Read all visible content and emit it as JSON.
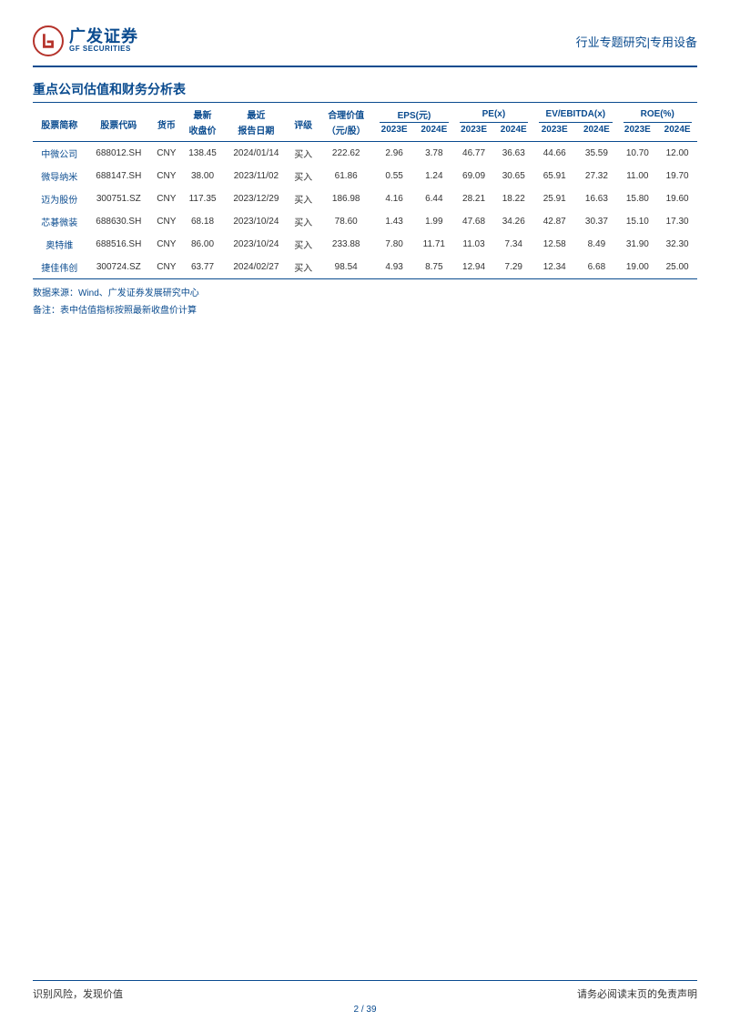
{
  "header": {
    "logo_cn": "广发证券",
    "logo_en": "GF SECURITIES",
    "category": "行业专题研究",
    "sep": "|",
    "subcategory": "专用设备"
  },
  "table": {
    "title": "重点公司估值和财务分析表",
    "head": {
      "name": "股票简称",
      "code": "股票代码",
      "currency": "货币",
      "price_top": "最新",
      "price_bot": "收盘价",
      "date_top": "最近",
      "date_bot": "报告日期",
      "rating": "评级",
      "fair_top": "合理价值",
      "fair_bot": "（元/股）",
      "eps": "EPS(元)",
      "pe": "PE(x)",
      "ev": "EV/EBITDA(x)",
      "roe": "ROE(%)",
      "y23": "2023E",
      "y24": "2024E"
    },
    "rows": [
      {
        "name": "中微公司",
        "code": "688012.SH",
        "cur": "CNY",
        "price": "138.45",
        "date": "2024/01/14",
        "rating": "买入",
        "fair": "222.62",
        "eps23": "2.96",
        "eps24": "3.78",
        "pe23": "46.77",
        "pe24": "36.63",
        "ev23": "44.66",
        "ev24": "35.59",
        "roe23": "10.70",
        "roe24": "12.00"
      },
      {
        "name": "微导纳米",
        "code": "688147.SH",
        "cur": "CNY",
        "price": "38.00",
        "date": "2023/11/02",
        "rating": "买入",
        "fair": "61.86",
        "eps23": "0.55",
        "eps24": "1.24",
        "pe23": "69.09",
        "pe24": "30.65",
        "ev23": "65.91",
        "ev24": "27.32",
        "roe23": "11.00",
        "roe24": "19.70"
      },
      {
        "name": "迈为股份",
        "code": "300751.SZ",
        "cur": "CNY",
        "price": "117.35",
        "date": "2023/12/29",
        "rating": "买入",
        "fair": "186.98",
        "eps23": "4.16",
        "eps24": "6.44",
        "pe23": "28.21",
        "pe24": "18.22",
        "ev23": "25.91",
        "ev24": "16.63",
        "roe23": "15.80",
        "roe24": "19.60"
      },
      {
        "name": "芯碁微装",
        "code": "688630.SH",
        "cur": "CNY",
        "price": "68.18",
        "date": "2023/10/24",
        "rating": "买入",
        "fair": "78.60",
        "eps23": "1.43",
        "eps24": "1.99",
        "pe23": "47.68",
        "pe24": "34.26",
        "ev23": "42.87",
        "ev24": "30.37",
        "roe23": "15.10",
        "roe24": "17.30"
      },
      {
        "name": "奥特维",
        "code": "688516.SH",
        "cur": "CNY",
        "price": "86.00",
        "date": "2023/10/24",
        "rating": "买入",
        "fair": "233.88",
        "eps23": "7.80",
        "eps24": "11.71",
        "pe23": "11.03",
        "pe24": "7.34",
        "ev23": "12.58",
        "ev24": "8.49",
        "roe23": "31.90",
        "roe24": "32.30"
      },
      {
        "name": "捷佳伟创",
        "code": "300724.SZ",
        "cur": "CNY",
        "price": "63.77",
        "date": "2024/02/27",
        "rating": "买入",
        "fair": "98.54",
        "eps23": "4.93",
        "eps24": "8.75",
        "pe23": "12.94",
        "pe24": "7.29",
        "ev23": "12.34",
        "ev24": "6.68",
        "roe23": "19.00",
        "roe24": "25.00"
      }
    ],
    "source": "数据来源：Wind、广发证券发展研究中心",
    "note": "备注：表中估值指标按照最新收盘价计算"
  },
  "footer": {
    "left": "识别风险，发现价值",
    "right": "请务必阅读末页的免责声明",
    "page_cur": "2",
    "page_sep": " / ",
    "page_total": "39"
  },
  "style": {
    "brand_blue": "#0a4b8f",
    "brand_red": "#b5332b",
    "text_color": "#333333",
    "bg_color": "#ffffff",
    "body_font_size": 10,
    "title_font_size": 14
  }
}
